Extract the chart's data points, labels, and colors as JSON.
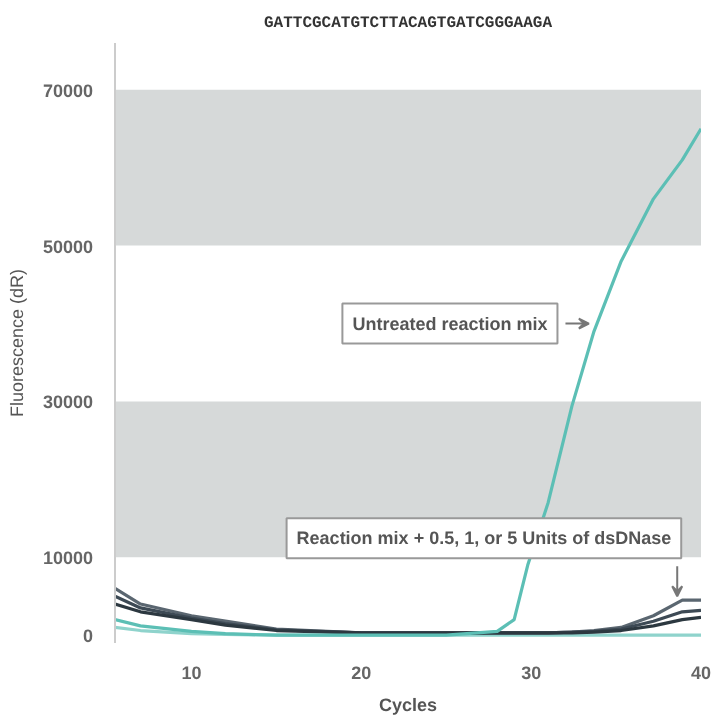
{
  "chart_data": {
    "type": "line",
    "xlabel": "Cycles",
    "ylabel": "Fluorescence (dR)",
    "xlim": [
      5.5,
      40
    ],
    "ylim": [
      -1000,
      76000
    ],
    "xticks": [
      10,
      20,
      30,
      40
    ],
    "yticks": [
      0,
      10000,
      30000,
      50000,
      70000
    ],
    "grid": false,
    "bands": [
      {
        "axis": "y",
        "from": 10000,
        "to": 30000,
        "color": "#d6d9d9"
      },
      {
        "axis": "y",
        "from": 50000,
        "to": 70000,
        "color": "#d6d9d9"
      }
    ],
    "x": [
      5.5,
      7,
      10,
      12,
      15,
      20,
      25,
      28,
      29,
      29.8,
      31,
      32.4,
      33.7,
      35.3,
      37.2,
      38.9,
      40
    ],
    "series": [
      {
        "color": "#8fd3cc",
        "values": [
          1000,
          600,
          200,
          100,
          0,
          0,
          0,
          0,
          0,
          0,
          0,
          0,
          0,
          0,
          0,
          0,
          0
        ]
      },
      {
        "color": "#5a6670",
        "values": [
          6000,
          4000,
          2500,
          1800,
          800,
          300,
          300,
          300,
          300,
          300,
          300,
          400,
          600,
          1000,
          2500,
          4500,
          4500
        ]
      },
      {
        "color": "#3d4a55",
        "values": [
          5000,
          3500,
          2200,
          1500,
          700,
          300,
          300,
          300,
          300,
          300,
          300,
          400,
          500,
          800,
          1800,
          3000,
          3200
        ]
      },
      {
        "color": "#2c3840",
        "values": [
          4000,
          3000,
          2000,
          1300,
          600,
          300,
          300,
          300,
          300,
          300,
          300,
          300,
          400,
          600,
          1200,
          2000,
          2300
        ]
      },
      {
        "color": "#5cbfb5",
        "values": [
          2000,
          1200,
          500,
          200,
          0,
          0,
          0,
          500,
          2000,
          9000,
          17000,
          29400,
          39000,
          48000,
          56000,
          61000,
          65000
        ]
      }
    ],
    "annotations": [
      "GATTCGCATGTCTTACAGTGATCGGGAAGA",
      {
        "text": "Untreated reaction mix",
        "x": 33.4,
        "y": 40000
      },
      {
        "text": "Reaction mix + 0.5, 1, or 5 Units of dsDNase",
        "x": 38.6,
        "y": 5000
      }
    ]
  }
}
